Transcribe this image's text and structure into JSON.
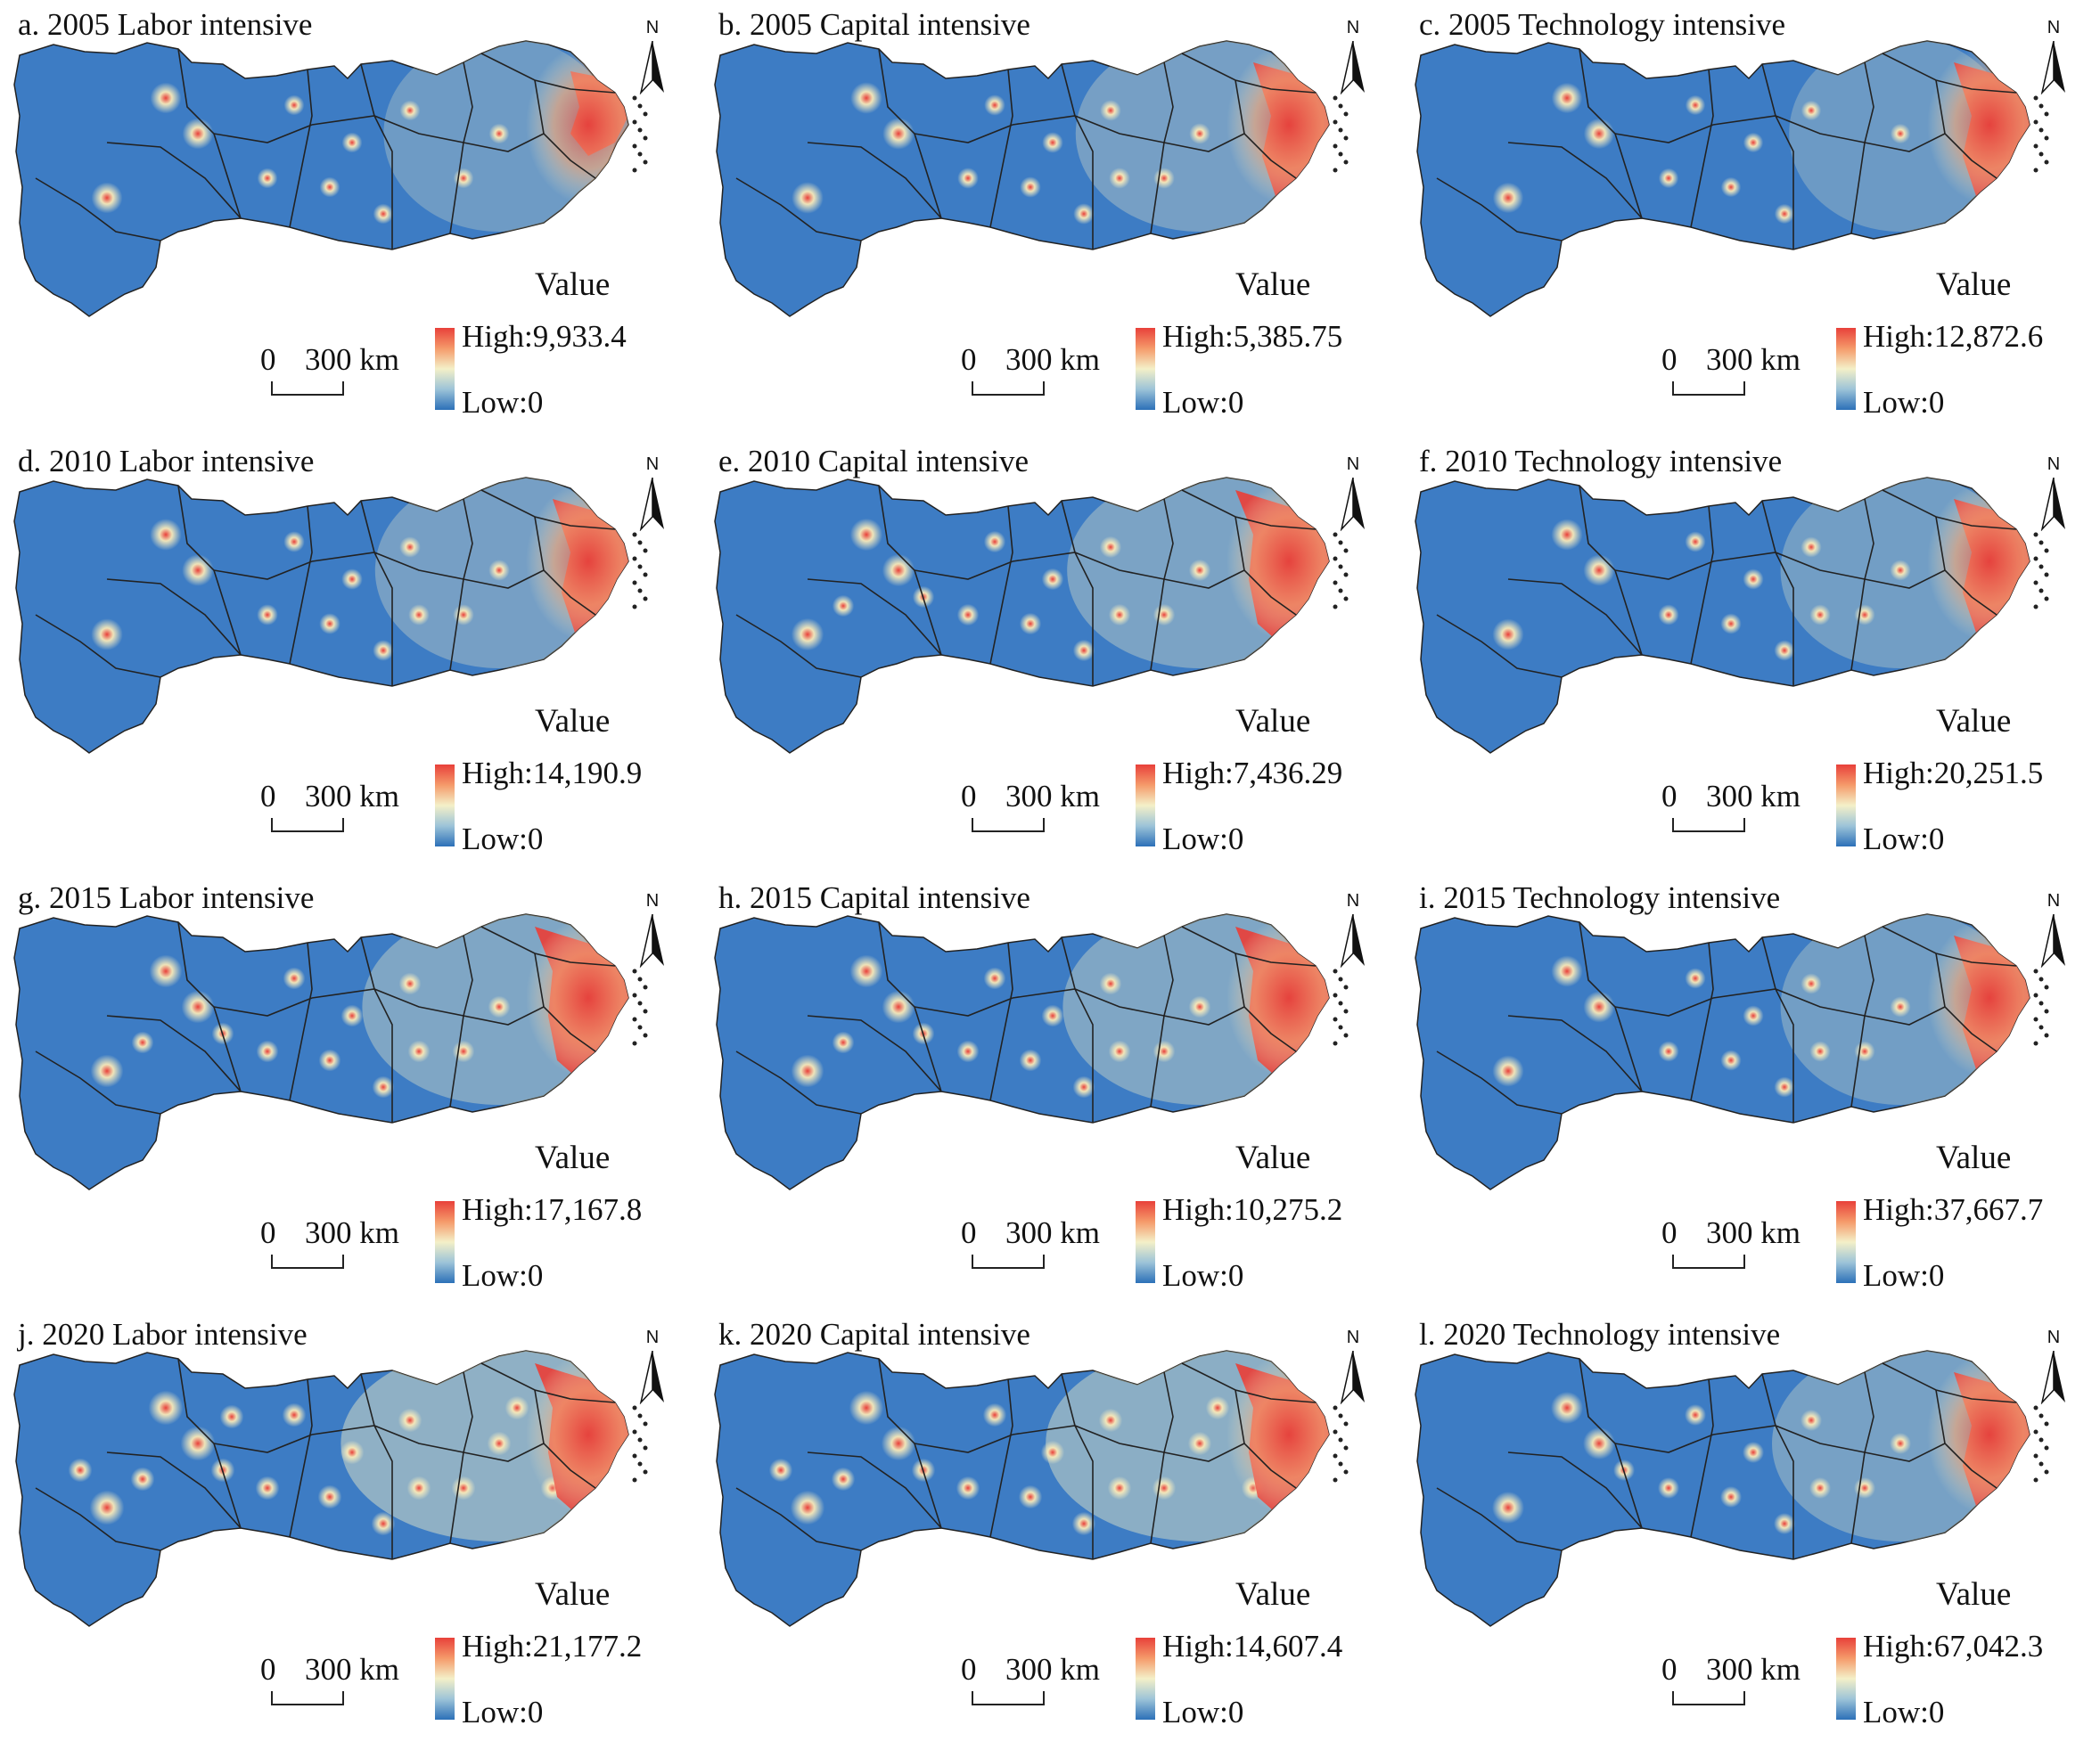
{
  "figure": {
    "legend_title": "Value",
    "scale_zero": "0",
    "scale_label": "300 km",
    "north_label": "N",
    "colors": {
      "high": "#e8403a",
      "mid": "#f4f0c8",
      "low": "#2c70b8",
      "boundary": "#222222",
      "sub_boundary": "#8a9aa8"
    }
  },
  "panels": [
    {
      "title": "a. 2005 Labor intensive",
      "high": "High:9,933.4",
      "low": "Low:0",
      "intensity": 0.35,
      "hotspot": "east-small"
    },
    {
      "title": "b. 2005 Capital intensive",
      "high": "High:5,385.75",
      "low": "Low:0",
      "intensity": 0.45,
      "hotspot": "east-medium"
    },
    {
      "title": "c. 2005 Technology intensive",
      "high": "High:12,872.6",
      "low": "Low:0",
      "intensity": 0.3,
      "hotspot": "east-medium"
    },
    {
      "title": "d. 2010 Labor intensive",
      "high": "High:14,190.9",
      "low": "Low:0",
      "intensity": 0.45,
      "hotspot": "east-medium"
    },
    {
      "title": "e. 2010 Capital intensive",
      "high": "High:7,436.29",
      "low": "Low:0",
      "intensity": 0.55,
      "hotspot": "east-large"
    },
    {
      "title": "f. 2010 Technology intensive",
      "high": "High:20,251.5",
      "low": "Low:0",
      "intensity": 0.4,
      "hotspot": "east-medium"
    },
    {
      "title": "g. 2015 Labor intensive",
      "high": "High:17,167.8",
      "low": "Low:0",
      "intensity": 0.6,
      "hotspot": "east-large"
    },
    {
      "title": "h. 2015 Capital intensive",
      "high": "High:10,275.2",
      "low": "Low:0",
      "intensity": 0.6,
      "hotspot": "east-large"
    },
    {
      "title": "i. 2015 Technology intensive",
      "high": "High:37,667.7",
      "low": "Low:0",
      "intensity": 0.4,
      "hotspot": "east-medium"
    },
    {
      "title": "j. 2020 Labor intensive",
      "high": "High:21,177.2",
      "low": "Low:0",
      "intensity": 0.85,
      "hotspot": "east-large"
    },
    {
      "title": "k. 2020 Capital intensive",
      "high": "High:14,607.4",
      "low": "Low:0",
      "intensity": 0.8,
      "hotspot": "east-large"
    },
    {
      "title": "l. 2020 Technology intensive",
      "high": "High:67,042.3",
      "low": "Low:0",
      "intensity": 0.5,
      "hotspot": "east-medium"
    }
  ]
}
